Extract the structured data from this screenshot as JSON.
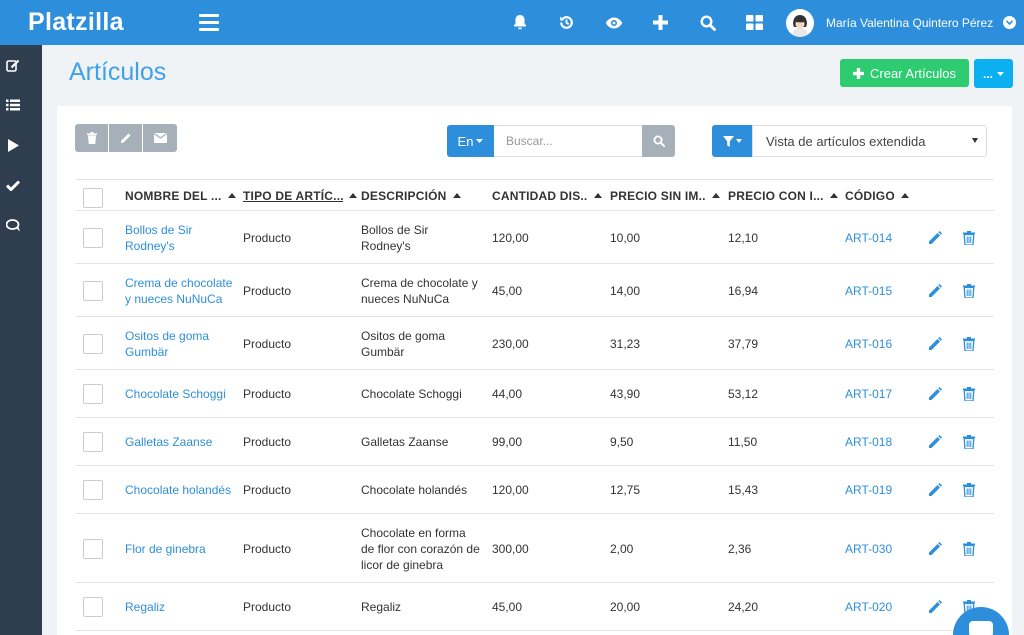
{
  "app": {
    "brand": "Platzilla"
  },
  "header": {
    "icons": [
      "bell-icon",
      "history-icon",
      "eye-icon",
      "plus-icon",
      "search-icon",
      "grid-icon"
    ],
    "user_name": "María Valentina Quintero Pérez"
  },
  "sidebar": {
    "icons": [
      "edit-icon",
      "list-icon",
      "play-icon",
      "check-icon",
      "chat-icon"
    ]
  },
  "page": {
    "title": "Artículos",
    "create_label": "Crear Artículos",
    "more_label": "..."
  },
  "toolbar": {
    "lang_label": "En",
    "search_placeholder": "Buscar...",
    "view_label": "Vista de artículos extendida"
  },
  "table": {
    "columns": [
      "NOMBRE DEL ...",
      "TIPO DE ARTÍC...",
      "DESCRIPCIÓN",
      "CANTIDAD DIS...",
      "PRECIO SIN IM...",
      "PRECIO CON I...",
      "CÓDIGO"
    ],
    "rows": [
      {
        "name": "Bollos de Sir Rodney's",
        "type": "Producto",
        "description": "Bollos de Sir Rodney's",
        "quantity": "120,00",
        "price_without": "10,00",
        "price_with": "12,10",
        "code": "ART-014"
      },
      {
        "name": "Crema de chocolate y nueces NuNuCa",
        "type": "Producto",
        "description": "Crema de chocolate y nueces NuNuCa",
        "quantity": "45,00",
        "price_without": "14,00",
        "price_with": "16,94",
        "code": "ART-015"
      },
      {
        "name": "Ositos de goma Gumbär",
        "type": "Producto",
        "description": "Ositos de goma Gumbär",
        "quantity": "230,00",
        "price_without": "31,23",
        "price_with": "37,79",
        "code": "ART-016"
      },
      {
        "name": "Chocolate Schoggi",
        "type": "Producto",
        "description": "Chocolate Schoggi",
        "quantity": "44,00",
        "price_without": "43,90",
        "price_with": "53,12",
        "code": "ART-017"
      },
      {
        "name": "Galletas Zaanse",
        "type": "Producto",
        "description": "Galletas Zaanse",
        "quantity": "99,00",
        "price_without": "9,50",
        "price_with": "11,50",
        "code": "ART-018"
      },
      {
        "name": "Chocolate holandés",
        "type": "Producto",
        "description": "Chocolate holandés",
        "quantity": "120,00",
        "price_without": "12,75",
        "price_with": "15,43",
        "code": "ART-019"
      },
      {
        "name": "Flor de ginebra",
        "type": "Producto",
        "description": "Chocolate en forma de flor con corazón de licor de ginebra",
        "quantity": "300,00",
        "price_without": "2,00",
        "price_with": "2,36",
        "code": "ART-030"
      },
      {
        "name": "Regaliz",
        "type": "Producto",
        "description": "Regaliz",
        "quantity": "45,00",
        "price_without": "20,00",
        "price_with": "24,20",
        "code": "ART-020"
      }
    ]
  },
  "colors": {
    "primary": "#2d8fdb",
    "success": "#2ecc71",
    "sidebar": "#2e3e4e",
    "muted": "#a7b0b8",
    "title": "#3fa2e8",
    "info": "#0ab0f0"
  }
}
